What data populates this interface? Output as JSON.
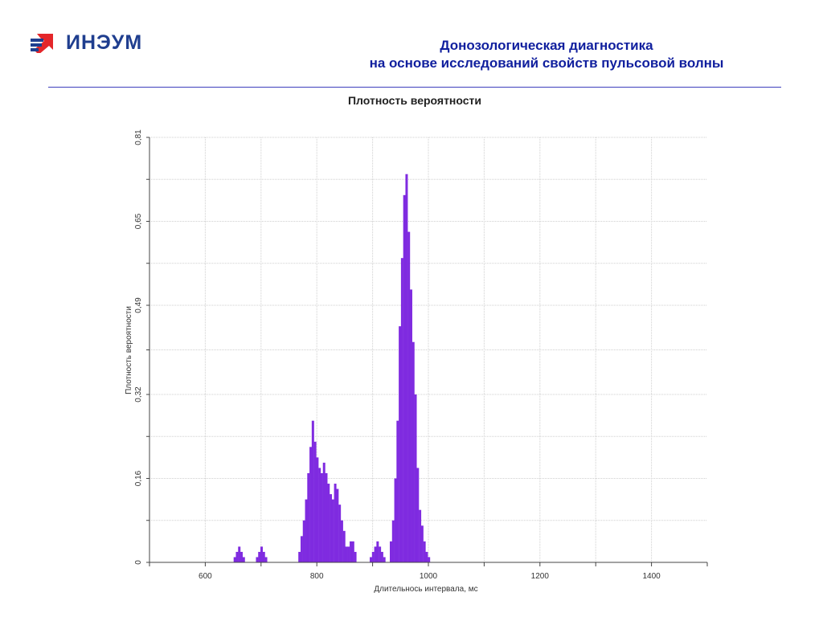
{
  "header": {
    "logo_text": "ИНЭУМ",
    "title_line1": "Донозологическая диагностика",
    "title_line2": "на основе исследований свойств пульсовой волны"
  },
  "colors": {
    "bar": "#7f2be0",
    "header_text": "#101f9e",
    "logo_blue": "#1f3e8f",
    "logo_red": "#e4262a",
    "rule": "#3d3fbd",
    "grid": "#cfcfcf"
  },
  "chart_data": {
    "type": "bar",
    "title": "Плотность вероятности",
    "xlabel": "Длительнось интервала, мс",
    "ylabel": "Плотность вероятности",
    "xlim": [
      500,
      1500
    ],
    "ylim": [
      0,
      0.81
    ],
    "x_ticks": [
      600,
      800,
      1000,
      1200,
      1400
    ],
    "x_tick_labels": [
      "600",
      "800",
      "1000",
      "1200",
      "1400"
    ],
    "y_ticks": [
      0,
      0.16,
      0.32,
      0.49,
      0.65,
      0.81
    ],
    "y_tick_labels": [
      "0",
      "0,16",
      "0,32",
      "0,49",
      "0,65",
      "0,81"
    ],
    "grid": true,
    "bin_width": 4.3,
    "x": [
      653,
      657,
      661,
      665,
      669,
      673,
      693,
      697,
      701,
      705,
      709,
      713,
      769,
      773,
      777,
      781,
      785,
      789,
      793,
      797,
      801,
      805,
      809,
      813,
      817,
      821,
      825,
      829,
      833,
      837,
      841,
      845,
      849,
      853,
      857,
      861,
      865,
      869,
      897,
      901,
      905,
      909,
      913,
      917,
      921,
      933,
      937,
      941,
      945,
      949,
      953,
      957,
      961,
      965,
      969,
      973,
      977,
      981,
      985,
      989,
      993,
      997,
      1001
    ],
    "values": [
      0.01,
      0.02,
      0.03,
      0.02,
      0.01,
      0.0,
      0.01,
      0.02,
      0.03,
      0.02,
      0.01,
      0.0,
      0.02,
      0.05,
      0.08,
      0.12,
      0.17,
      0.22,
      0.27,
      0.23,
      0.2,
      0.18,
      0.17,
      0.19,
      0.17,
      0.15,
      0.13,
      0.12,
      0.15,
      0.14,
      0.11,
      0.08,
      0.06,
      0.03,
      0.03,
      0.04,
      0.04,
      0.02,
      0.01,
      0.02,
      0.03,
      0.04,
      0.03,
      0.02,
      0.01,
      0.04,
      0.08,
      0.16,
      0.27,
      0.45,
      0.58,
      0.7,
      0.74,
      0.63,
      0.52,
      0.42,
      0.32,
      0.18,
      0.1,
      0.07,
      0.04,
      0.02,
      0.01
    ]
  }
}
